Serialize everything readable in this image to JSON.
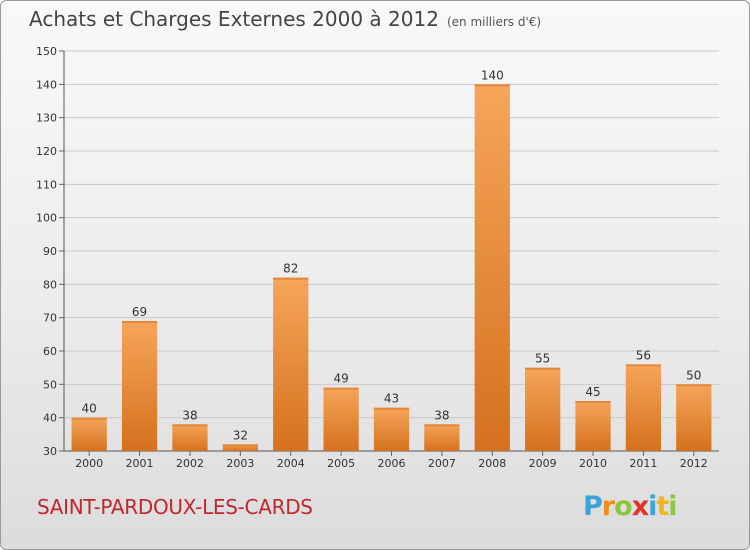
{
  "header": {
    "title": "Achats et Charges Externes 2000 à 2012",
    "subtitle": "(en milliers d'€)"
  },
  "footer": {
    "city": "SAINT-PARDOUX-LES-CARDS",
    "logo_letters": [
      "P",
      "r",
      "o",
      "x",
      "i",
      "t",
      "i"
    ],
    "logo_colors": [
      "#3aa3d9",
      "#f28c1b",
      "#8cc63f",
      "#e6332a",
      "#3aa3d9",
      "#f2b51b",
      "#8cc63f"
    ]
  },
  "colors": {
    "bar_light": "#f6a55a",
    "bar_dark": "#d4711f",
    "grid": "#c8c8c8"
  },
  "chart_data": {
    "type": "bar",
    "categories": [
      "2000",
      "2001",
      "2002",
      "2003",
      "2004",
      "2005",
      "2006",
      "2007",
      "2008",
      "2009",
      "2010",
      "2011",
      "2012"
    ],
    "values": [
      40,
      69,
      38,
      32,
      82,
      49,
      43,
      38,
      140,
      55,
      45,
      56,
      50
    ],
    "ylim": [
      30,
      150
    ],
    "yticks": [
      30,
      40,
      50,
      60,
      70,
      80,
      90,
      100,
      110,
      120,
      130,
      140,
      150
    ],
    "grid": true
  }
}
